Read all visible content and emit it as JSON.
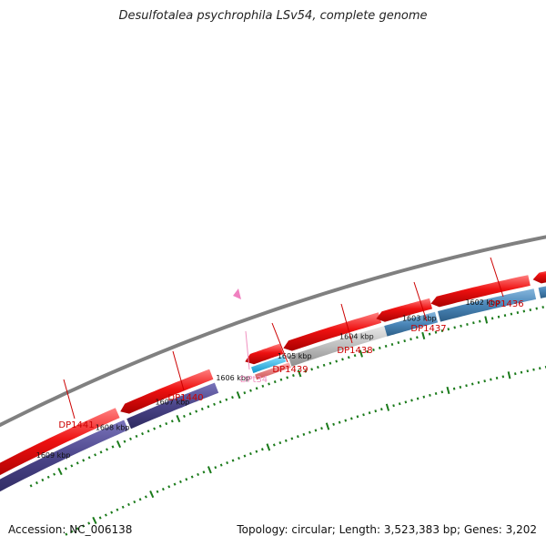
{
  "title": "Desulfotalea psychrophila LSv54, complete genome",
  "footer": {
    "accession": "Accession: NC_006138",
    "summary": "Topology: circular; Length: 3,523,383 bp; Genes: 3,202"
  },
  "scale": {
    "tick_labels": [
      "1609 kbp",
      "1608 kbp",
      "1607 kbp",
      "1606 kbp",
      "1605 kbp",
      "1604 kbp",
      "1603 kbp",
      "1602 kbp"
    ],
    "tick_color": "#1a7a1a"
  },
  "colors": {
    "backbone": "#808080",
    "gene_forward": "#ee1111",
    "cds_reverse": "#4a4488",
    "cds_forward_blue": "#4a86b8",
    "cds_gray": "#bdbdbd",
    "trna": "#22bbee",
    "rrna": "#ee8888",
    "pseudo": "#f080c0",
    "label_red": "#cc0000",
    "label_pink": "#f090c0"
  },
  "genes": [
    {
      "label": "DP1441",
      "color_key": "label_red"
    },
    {
      "label": "DP1440",
      "color_key": "label_red"
    },
    {
      "label": "DPt34",
      "color_key": "label_pink"
    },
    {
      "label": "DP1439",
      "color_key": "label_red"
    },
    {
      "label": "DP1438",
      "color_key": "label_red"
    },
    {
      "label": "DP1437",
      "color_key": "label_red"
    },
    {
      "label": "DP1436",
      "color_key": "label_red"
    }
  ]
}
